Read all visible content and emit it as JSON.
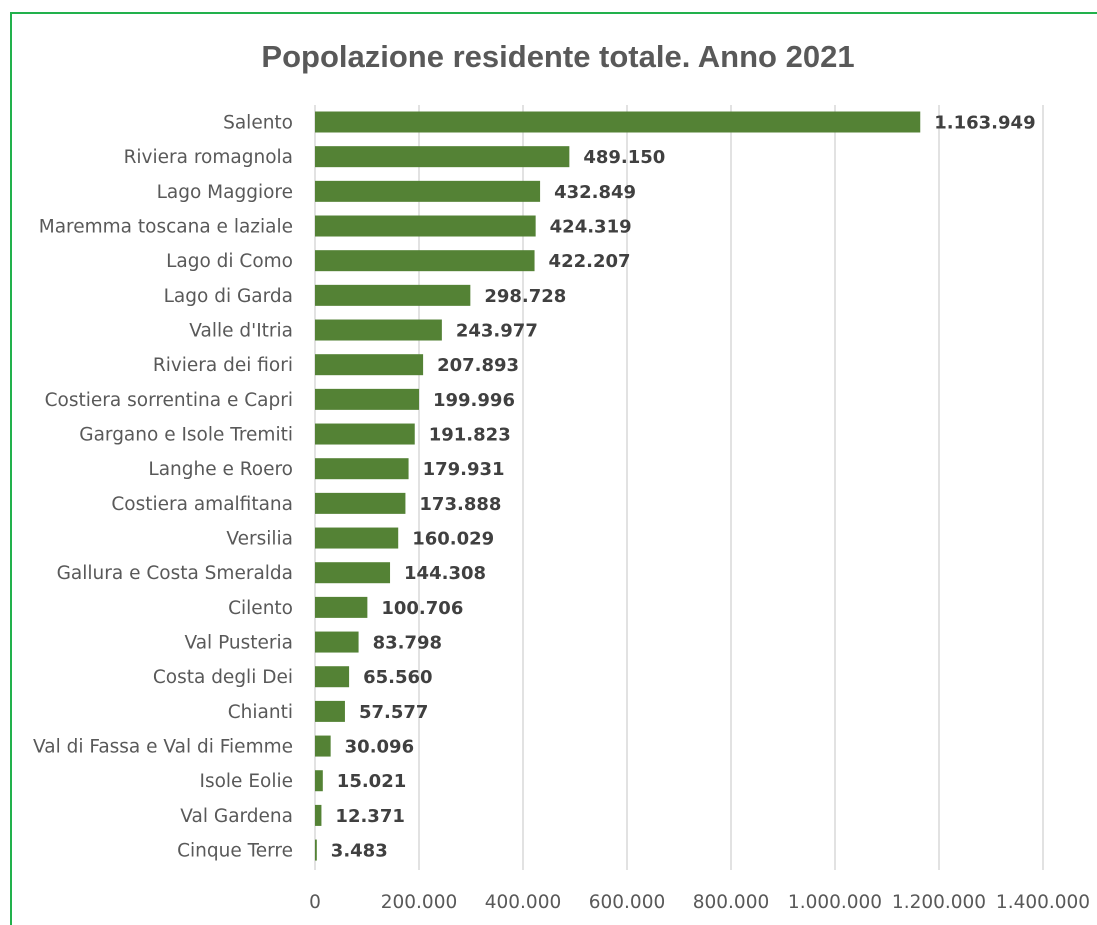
{
  "chart_data": {
    "type": "bar",
    "orientation": "horizontal",
    "title": "Popolazione residente totale. Anno 2021",
    "xlabel": "",
    "ylabel": "",
    "xlim": [
      0,
      1400000
    ],
    "ticks": [
      0,
      200000,
      400000,
      600000,
      800000,
      1000000,
      1200000,
      1400000
    ],
    "tick_labels": [
      "0",
      "200.000",
      "400.000",
      "600.000",
      "800.000",
      "1.000.000",
      "1.200.000",
      "1.400.000"
    ],
    "grid": true,
    "legend": "none",
    "bar_color": "#548235",
    "categories": [
      "Salento",
      "Riviera romagnola",
      "Lago Maggiore",
      "Maremma toscana e laziale",
      "Lago di Como",
      "Lago di Garda",
      "Valle d'Itria",
      "Riviera dei fiori",
      "Costiera sorrentina e Capri",
      "Gargano e Isole Tremiti",
      "Langhe e Roero",
      "Costiera amalfitana",
      "Versilia",
      "Gallura e Costa Smeralda",
      "Cilento",
      "Val Pusteria",
      "Costa degli Dei",
      "Chianti",
      "Val di Fassa e Val di Fiemme",
      "Isole Eolie",
      "Val Gardena",
      "Cinque Terre"
    ],
    "values": [
      1163949,
      489150,
      432849,
      424319,
      422207,
      298728,
      243977,
      207893,
      199996,
      191823,
      179931,
      173888,
      160029,
      144308,
      100706,
      83798,
      65560,
      57577,
      30096,
      15021,
      12371,
      3483
    ],
    "value_labels": [
      "1.163.949",
      "489.150",
      "432.849",
      "424.319",
      "422.207",
      "298.728",
      "243.977",
      "207.893",
      "199.996",
      "191.823",
      "179.931",
      "173.888",
      "160.029",
      "144.308",
      "100.706",
      "83.798",
      "65.560",
      "57.577",
      "30.096",
      "15.021",
      "12.371",
      "3.483"
    ]
  }
}
